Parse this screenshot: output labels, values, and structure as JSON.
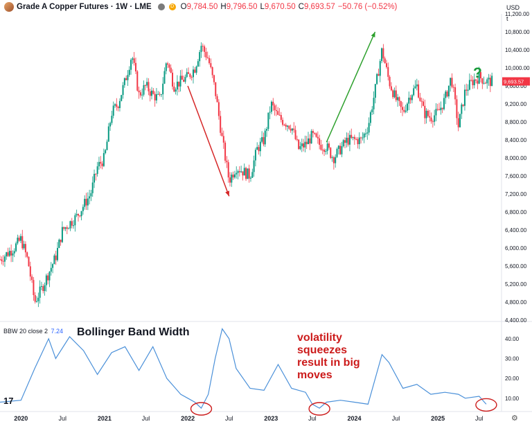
{
  "header": {
    "title": "Grade A Copper Futures · 1W · LME",
    "open": "9,784.50",
    "high": "9,796.50",
    "low": "9,670.50",
    "close": "9,693.57",
    "change": "−50.76 (−0.52%)",
    "open_label": "O",
    "high_label": "H",
    "low_label": "L",
    "close_label": "C",
    "badge": "D"
  },
  "currency": "USD",
  "currency_sub": "t",
  "indicator": {
    "name": "BBW 20 close 2",
    "value": "7.24"
  },
  "annotations": {
    "bbw_title": "Bollinger Band Width",
    "squeeze_note": "volatility squeezes result in big moves",
    "question_mark": "?"
  },
  "colors": {
    "up": "#089981",
    "down": "#f23645",
    "bbw_line": "#4a90d9",
    "arrow_down": "#d62728",
    "arrow_up": "#2ca02c",
    "circle": "#cc1b1b"
  },
  "icons": {
    "logo": "copper-symbol-icon",
    "brand": "tradingview-logo-icon",
    "settings": "gear-icon"
  },
  "tradingview_mark": "17",
  "chart_data": [
    {
      "type": "candlestick",
      "title": "Grade A Copper Futures · 1W · LME",
      "ylim": [
        4400,
        11200
      ],
      "y_ticks": [
        4400,
        4800,
        5200,
        5600,
        6000,
        6400,
        6800,
        7200,
        7600,
        8000,
        8400,
        8800,
        9200,
        9600,
        10000,
        10400,
        10800,
        11200
      ],
      "y_tick_labels": [
        "4,400.00",
        "4,800.00",
        "5,200.00",
        "5,600.00",
        "6,000.00",
        "6,400.00",
        "6,800.00",
        "7,200.00",
        "7,600.00",
        "8,000.00",
        "8,400.00",
        "8,800.00",
        "9,200.00",
        "9,600.00",
        "10,000.00",
        "10,400.00",
        "10,800.00",
        "11,200.00"
      ],
      "x_range": [
        "2019-10",
        "2025-10"
      ],
      "x_ticks": [
        "2020",
        "Jul",
        "2021",
        "Jul",
        "2022",
        "Jul",
        "2023",
        "Jul",
        "2024",
        "Jul",
        "2025",
        "Jul"
      ],
      "x_tick_dates": [
        "2020-01",
        "2020-07",
        "2021-01",
        "2021-07",
        "2022-01",
        "2022-07",
        "2023-01",
        "2023-07",
        "2024-01",
        "2024-07",
        "2025-01",
        "2025-07"
      ],
      "path": [
        [
          "2019-10",
          5750
        ],
        [
          "2019-12",
          6000
        ],
        [
          "2020-01",
          6200
        ],
        [
          "2020-02",
          5700
        ],
        [
          "2020-03",
          4800
        ],
        [
          "2020-04",
          5100
        ],
        [
          "2020-06",
          5800
        ],
        [
          "2020-07",
          6400
        ],
        [
          "2020-09",
          6700
        ],
        [
          "2020-11",
          7200
        ],
        [
          "2020-12",
          7800
        ],
        [
          "2021-01",
          8000
        ],
        [
          "2021-02",
          9000
        ],
        [
          "2021-03",
          9200
        ],
        [
          "2021-04",
          9700
        ],
        [
          "2021-05",
          10300
        ],
        [
          "2021-06",
          9400
        ],
        [
          "2021-07",
          9600
        ],
        [
          "2021-08",
          9400
        ],
        [
          "2021-09",
          9300
        ],
        [
          "2021-10",
          10200
        ],
        [
          "2021-11",
          9600
        ],
        [
          "2021-12",
          9700
        ],
        [
          "2022-01",
          9800
        ],
        [
          "2022-02",
          10000
        ],
        [
          "2022-03",
          10500
        ],
        [
          "2022-04",
          10200
        ],
        [
          "2022-05",
          9500
        ],
        [
          "2022-06",
          8400
        ],
        [
          "2022-07",
          7500
        ],
        [
          "2022-08",
          7800
        ],
        [
          "2022-09",
          7700
        ],
        [
          "2022-10",
          7600
        ],
        [
          "2022-11",
          8200
        ],
        [
          "2022-12",
          8400
        ],
        [
          "2023-01",
          9200
        ],
        [
          "2023-02",
          8900
        ],
        [
          "2023-03",
          8800
        ],
        [
          "2023-04",
          8700
        ],
        [
          "2023-05",
          8200
        ],
        [
          "2023-06",
          8300
        ],
        [
          "2023-07",
          8500
        ],
        [
          "2023-08",
          8300
        ],
        [
          "2023-09",
          8250
        ],
        [
          "2023-10",
          8000
        ],
        [
          "2023-11",
          8200
        ],
        [
          "2023-12",
          8400
        ],
        [
          "2024-01",
          8400
        ],
        [
          "2024-02",
          8400
        ],
        [
          "2024-03",
          8700
        ],
        [
          "2024-04",
          9500
        ],
        [
          "2024-05",
          10400
        ],
        [
          "2024-06",
          9700
        ],
        [
          "2024-07",
          9300
        ],
        [
          "2024-08",
          9000
        ],
        [
          "2024-09",
          9400
        ],
        [
          "2024-10",
          9600
        ],
        [
          "2024-11",
          9000
        ],
        [
          "2024-12",
          8900
        ],
        [
          "2025-01",
          9000
        ],
        [
          "2025-02",
          9300
        ],
        [
          "2025-03",
          9800
        ],
        [
          "2025-04",
          8700
        ],
        [
          "2025-05",
          9500
        ],
        [
          "2025-06",
          9700
        ],
        [
          "2025-07",
          9800
        ],
        [
          "2025-08",
          9700
        ],
        [
          "2025-09",
          9700
        ]
      ],
      "annotations": [
        {
          "type": "arrow",
          "color": "#d62728",
          "from": [
            "2022-01",
            9600
          ],
          "to": [
            "2022-07",
            7150
          ]
        },
        {
          "type": "arrow",
          "color": "#2ca02c",
          "from": [
            "2023-09",
            8350
          ],
          "to": [
            "2024-04",
            10800
          ]
        }
      ]
    },
    {
      "type": "line",
      "name": "BBW 20 close 2",
      "ylim": [
        4,
        48
      ],
      "y_ticks": [
        10,
        20,
        30,
        40
      ],
      "y_tick_labels": [
        "10.00",
        "20.00",
        "30.00",
        "40.00"
      ],
      "points": [
        [
          "2019-10",
          8
        ],
        [
          "2020-01",
          9
        ],
        [
          "2020-03",
          25
        ],
        [
          "2020-05",
          40
        ],
        [
          "2020-06",
          30
        ],
        [
          "2020-08",
          41
        ],
        [
          "2020-10",
          34
        ],
        [
          "2020-12",
          22
        ],
        [
          "2021-02",
          33
        ],
        [
          "2021-04",
          36
        ],
        [
          "2021-06",
          24
        ],
        [
          "2021-08",
          36
        ],
        [
          "2021-10",
          20
        ],
        [
          "2021-12",
          12
        ],
        [
          "2022-01",
          10
        ],
        [
          "2022-02",
          8
        ],
        [
          "2022-03",
          5
        ],
        [
          "2022-04",
          12
        ],
        [
          "2022-05",
          30
        ],
        [
          "2022-06",
          45
        ],
        [
          "2022-07",
          40
        ],
        [
          "2022-08",
          25
        ],
        [
          "2022-10",
          15
        ],
        [
          "2022-12",
          14
        ],
        [
          "2023-02",
          27
        ],
        [
          "2023-04",
          15
        ],
        [
          "2023-06",
          13
        ],
        [
          "2023-07",
          7
        ],
        [
          "2023-08",
          5
        ],
        [
          "2023-09",
          8
        ],
        [
          "2023-11",
          9
        ],
        [
          "2024-01",
          8
        ],
        [
          "2024-03",
          7
        ],
        [
          "2024-05",
          32
        ],
        [
          "2024-06",
          28
        ],
        [
          "2024-08",
          15
        ],
        [
          "2024-10",
          17
        ],
        [
          "2024-12",
          12
        ],
        [
          "2025-02",
          13
        ],
        [
          "2025-04",
          12
        ],
        [
          "2025-05",
          10
        ],
        [
          "2025-07",
          11
        ],
        [
          "2025-08",
          7
        ]
      ],
      "circles": [
        "2022-03",
        "2023-08",
        "2025-08"
      ]
    }
  ]
}
